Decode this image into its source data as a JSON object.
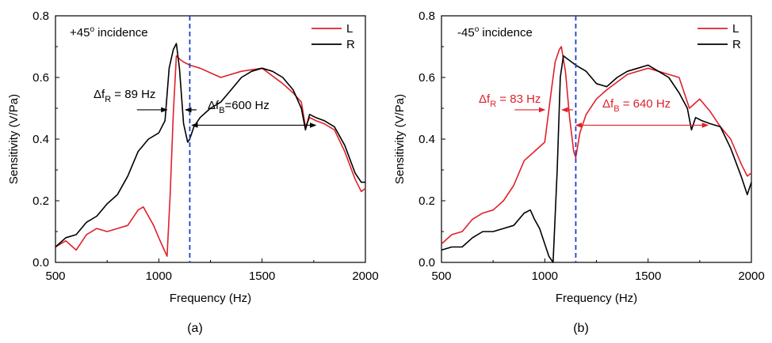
{
  "panels": [
    {
      "caption": "(a)",
      "incidence_prefix": "+45",
      "incidence_sup": "o",
      "incidence_suffix": " incidence"
    },
    {
      "caption": "(b)",
      "incidence_prefix": "-45",
      "incidence_sup": "o",
      "incidence_suffix": " incidence"
    }
  ],
  "colors": {
    "L": "#e0202a",
    "R": "#000000",
    "marker": "#1f3fd0"
  },
  "chart_data": [
    {
      "type": "line",
      "xlabel": "Frequency (Hz)",
      "ylabel": "Sensitivity (V/Pa)",
      "xlim": [
        500,
        2000
      ],
      "ylim": [
        0,
        0.8
      ],
      "xticks": [
        500,
        1000,
        1500,
        2000
      ],
      "yticks": [
        0.0,
        0.2,
        0.4,
        0.6,
        0.8
      ],
      "ytick_labels": [
        "0.0",
        "0.2",
        "0.4",
        "0.6",
        "0.8"
      ],
      "grid": false,
      "legend": "top-right",
      "vline_x": 1150,
      "series": [
        {
          "name": "L",
          "color": "#e0202a",
          "x": [
            500,
            550,
            600,
            650,
            700,
            750,
            800,
            850,
            900,
            925,
            950,
            975,
            1000,
            1020,
            1040,
            1055,
            1070,
            1085,
            1100,
            1120,
            1150,
            1200,
            1300,
            1400,
            1500,
            1600,
            1650,
            1690,
            1710,
            1730,
            1760,
            1800,
            1850,
            1900,
            1950,
            1980,
            2000
          ],
          "y": [
            0.05,
            0.07,
            0.04,
            0.09,
            0.11,
            0.1,
            0.11,
            0.12,
            0.17,
            0.18,
            0.15,
            0.12,
            0.08,
            0.05,
            0.02,
            0.22,
            0.48,
            0.67,
            0.66,
            0.65,
            0.64,
            0.63,
            0.6,
            0.62,
            0.63,
            0.58,
            0.55,
            0.52,
            0.44,
            0.47,
            0.46,
            0.45,
            0.43,
            0.36,
            0.27,
            0.23,
            0.24
          ]
        },
        {
          "name": "R",
          "color": "#000000",
          "x": [
            500,
            550,
            600,
            650,
            700,
            750,
            800,
            850,
            900,
            950,
            1000,
            1030,
            1050,
            1070,
            1085,
            1100,
            1120,
            1140,
            1150,
            1170,
            1200,
            1250,
            1300,
            1350,
            1400,
            1450,
            1500,
            1550,
            1600,
            1650,
            1690,
            1710,
            1730,
            1760,
            1800,
            1850,
            1900,
            1950,
            1980,
            2000
          ],
          "y": [
            0.05,
            0.08,
            0.09,
            0.13,
            0.15,
            0.19,
            0.22,
            0.28,
            0.36,
            0.4,
            0.42,
            0.46,
            0.63,
            0.69,
            0.71,
            0.63,
            0.45,
            0.39,
            0.4,
            0.44,
            0.47,
            0.5,
            0.52,
            0.56,
            0.6,
            0.62,
            0.63,
            0.62,
            0.6,
            0.56,
            0.5,
            0.43,
            0.48,
            0.47,
            0.46,
            0.44,
            0.38,
            0.29,
            0.26,
            0.26
          ]
        }
      ],
      "annotations": [
        {
          "text_base": "Δf",
          "text_sub": "R",
          "text_tail": " = 89 Hz",
          "color": "#000000",
          "from_x": 1040,
          "to_x": 1129,
          "y": 0.495
        },
        {
          "text_base": "Δf",
          "text_sub": "B",
          "text_tail": "=600 Hz",
          "color": "#000000",
          "from_x": 1160,
          "to_x": 1760,
          "y": 0.445
        }
      ]
    },
    {
      "type": "line",
      "xlabel": "Frequency (Hz)",
      "ylabel": "Sensitivity (V/Pa)",
      "xlim": [
        500,
        2000
      ],
      "ylim": [
        0,
        0.8
      ],
      "xticks": [
        500,
        1000,
        1500,
        2000
      ],
      "yticks": [
        0.0,
        0.2,
        0.4,
        0.6,
        0.8
      ],
      "ytick_labels": [
        "0.0",
        "0.2",
        "0.4",
        "0.6",
        "0.8"
      ],
      "grid": false,
      "legend": "top-right",
      "vline_x": 1150,
      "series": [
        {
          "name": "L",
          "color": "#e0202a",
          "x": [
            500,
            550,
            600,
            650,
            700,
            750,
            800,
            850,
            900,
            950,
            1000,
            1030,
            1050,
            1070,
            1080,
            1100,
            1120,
            1140,
            1150,
            1170,
            1200,
            1250,
            1300,
            1400,
            1500,
            1550,
            1600,
            1650,
            1700,
            1750,
            1800,
            1850,
            1900,
            1950,
            1980,
            2000
          ],
          "y": [
            0.06,
            0.09,
            0.1,
            0.14,
            0.16,
            0.17,
            0.2,
            0.25,
            0.33,
            0.36,
            0.39,
            0.55,
            0.65,
            0.69,
            0.7,
            0.62,
            0.47,
            0.36,
            0.34,
            0.42,
            0.48,
            0.53,
            0.56,
            0.61,
            0.63,
            0.62,
            0.61,
            0.6,
            0.5,
            0.53,
            0.49,
            0.44,
            0.4,
            0.32,
            0.28,
            0.29
          ]
        },
        {
          "name": "R",
          "color": "#000000",
          "x": [
            500,
            550,
            600,
            650,
            700,
            750,
            800,
            850,
            900,
            930,
            950,
            975,
            1000,
            1020,
            1040,
            1060,
            1075,
            1090,
            1110,
            1150,
            1200,
            1250,
            1300,
            1350,
            1400,
            1450,
            1500,
            1550,
            1600,
            1650,
            1690,
            1710,
            1730,
            1760,
            1800,
            1850,
            1900,
            1950,
            1980,
            2000
          ],
          "y": [
            0.04,
            0.05,
            0.05,
            0.08,
            0.1,
            0.1,
            0.11,
            0.12,
            0.16,
            0.17,
            0.14,
            0.11,
            0.06,
            0.02,
            0.0,
            0.3,
            0.6,
            0.67,
            0.66,
            0.64,
            0.62,
            0.58,
            0.57,
            0.6,
            0.62,
            0.63,
            0.64,
            0.62,
            0.6,
            0.55,
            0.5,
            0.43,
            0.47,
            0.46,
            0.45,
            0.44,
            0.37,
            0.28,
            0.22,
            0.26
          ]
        }
      ],
      "annotations": [
        {
          "text_base": "Δf",
          "text_sub": "R",
          "text_tail": " = 83 Hz",
          "color": "#e0202a",
          "from_x": 1000,
          "to_x": 1083,
          "y": 0.495
        },
        {
          "text_base": "Δf",
          "text_sub": "B",
          "text_tail": " = 640 Hz",
          "color": "#e0202a",
          "from_x": 1150,
          "to_x": 1790,
          "y": 0.445
        }
      ]
    }
  ]
}
